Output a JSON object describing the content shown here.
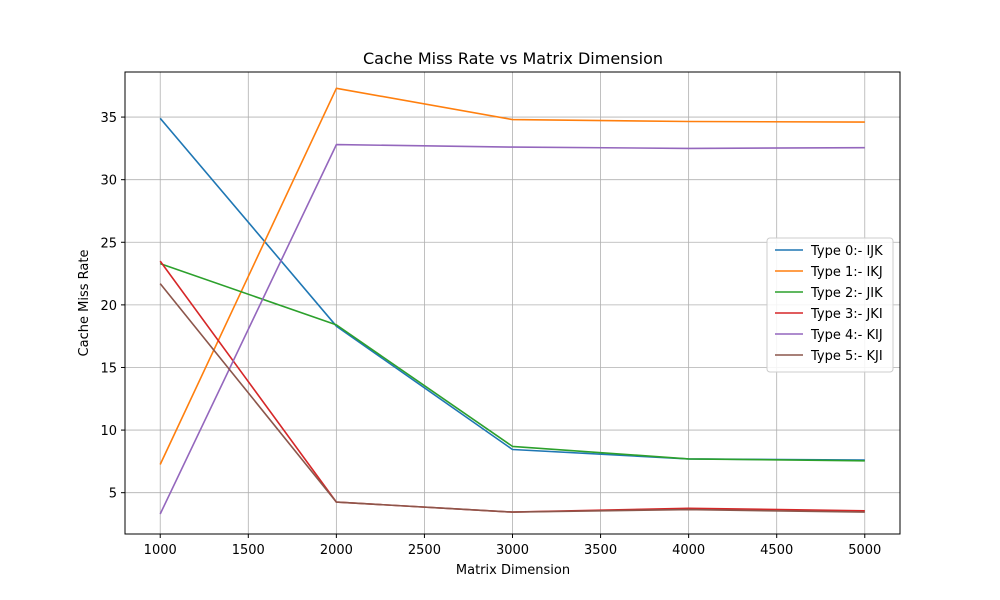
{
  "chart_data": {
    "type": "line",
    "title": "Cache Miss Rate vs Matrix Dimension",
    "xlabel": "Matrix Dimension",
    "ylabel": "Cache Miss Rate",
    "x": [
      1000,
      2000,
      3000,
      4000,
      5000
    ],
    "xlim": [
      800,
      5200
    ],
    "ylim": [
      1.7,
      38.6
    ],
    "xticks": [
      1000,
      1500,
      2000,
      2500,
      3000,
      3500,
      4000,
      4500,
      5000
    ],
    "yticks": [
      5,
      10,
      15,
      20,
      25,
      30,
      35
    ],
    "grid": true,
    "legend_position": "center-right",
    "series": [
      {
        "name": "Type 0:- IJK",
        "color": "#1f77b4",
        "values": [
          34.9,
          18.3,
          8.45,
          7.7,
          7.6
        ]
      },
      {
        "name": "Type 1:- IKJ",
        "color": "#ff7f0e",
        "values": [
          7.25,
          37.3,
          34.8,
          34.65,
          34.6
        ]
      },
      {
        "name": "Type 2:- JIK",
        "color": "#2ca02c",
        "values": [
          23.3,
          18.4,
          8.7,
          7.7,
          7.55
        ]
      },
      {
        "name": "Type 3:- JKI",
        "color": "#d62728",
        "values": [
          23.5,
          4.25,
          3.45,
          3.75,
          3.55
        ]
      },
      {
        "name": "Type 4:- KIJ",
        "color": "#9467bd",
        "values": [
          3.3,
          32.8,
          32.6,
          32.5,
          32.55
        ]
      },
      {
        "name": "Type 5:- KJI",
        "color": "#8c564b",
        "values": [
          21.7,
          4.25,
          3.45,
          3.65,
          3.45
        ]
      }
    ]
  }
}
